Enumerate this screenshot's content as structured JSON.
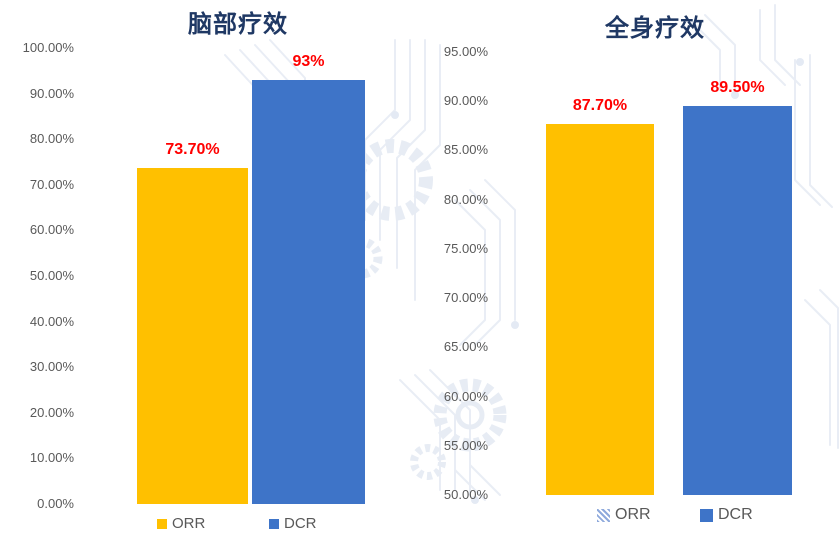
{
  "page": {
    "background": "#ffffff",
    "watermark_name": "circuit-board-watermark"
  },
  "colors": {
    "title": "#1F3864",
    "axis_text": "#595959",
    "legend_text": "#595959",
    "value_label": "#FF0000",
    "orr_bar": "#FFC000",
    "dcr_bar": "#3E74C8",
    "hatched_swatch_base": "#8FAADC",
    "watermark_stroke": "#E9EDF5",
    "watermark_fill": "#EDF1F7"
  },
  "chart_data": [
    {
      "type": "bar",
      "title": "脑部疗效",
      "categories": [
        "ORR",
        "DCR"
      ],
      "values": [
        73.7,
        93
      ],
      "value_labels": [
        "73.70%",
        "93%"
      ],
      "series_colors": [
        "#FFC000",
        "#3E74C8"
      ],
      "ylim": [
        0,
        100
      ],
      "ytick_step": 10,
      "yticks": [
        "100.00%",
        "90.00%",
        "80.00%",
        "70.00%",
        "60.00%",
        "50.00%",
        "40.00%",
        "30.00%",
        "20.00%",
        "10.00%",
        "0.00%"
      ],
      "grid": false,
      "legend_position": "bottom",
      "legend": [
        {
          "label": "ORR",
          "swatch_type": "solid",
          "swatch_color": "#FFC000"
        },
        {
          "label": "DCR",
          "swatch_type": "solid",
          "swatch_color": "#3E74C8"
        }
      ]
    },
    {
      "type": "bar",
      "title": "全身疗效",
      "categories": [
        "ORR",
        "DCR"
      ],
      "values": [
        87.7,
        89.5
      ],
      "value_labels": [
        "87.70%",
        "89.50%"
      ],
      "series_colors": [
        "#FFC000",
        "#3E74C8"
      ],
      "ylim": [
        50,
        95
      ],
      "ytick_step": 5,
      "yticks": [
        "95.00%",
        "90.00%",
        "85.00%",
        "80.00%",
        "75.00%",
        "70.00%",
        "65.00%",
        "60.00%",
        "55.00%",
        "50.00%"
      ],
      "grid": false,
      "legend_position": "bottom",
      "legend": [
        {
          "label": "ORR",
          "swatch_type": "hatched",
          "swatch_color": "#8FAADC"
        },
        {
          "label": "DCR",
          "swatch_type": "solid",
          "swatch_color": "#3E74C8"
        }
      ]
    }
  ]
}
